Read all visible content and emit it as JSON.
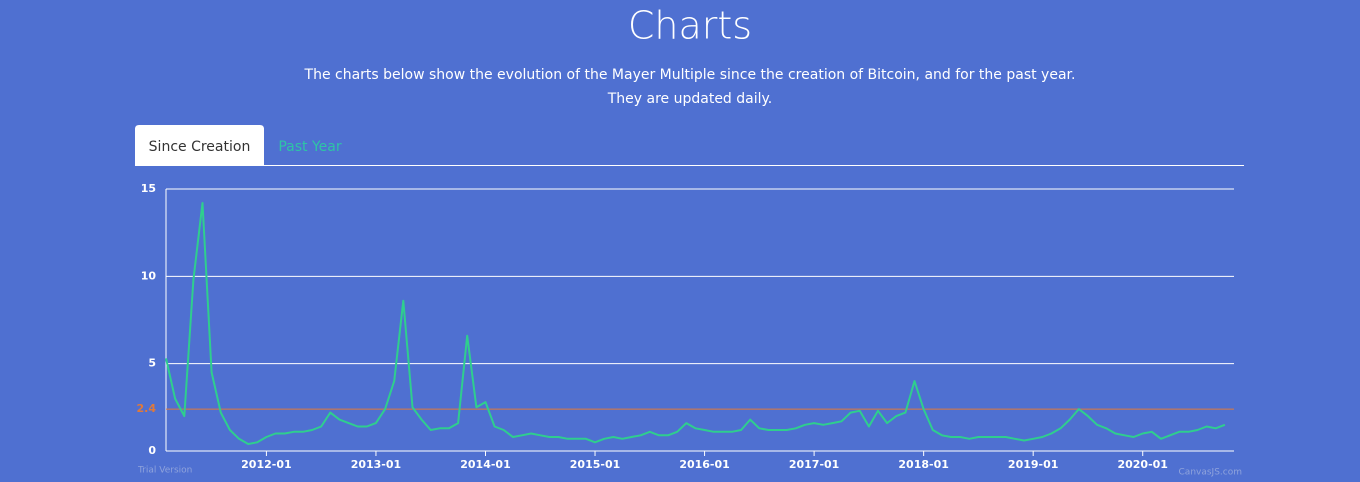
{
  "header": {
    "title": "Charts",
    "subtitle_lines": [
      "The charts below show the evolution of the Mayer Multiple since the creation of Bitcoin, and for the past year.",
      "They are updated daily."
    ]
  },
  "tabs": [
    "Since Creation",
    "Past Year"
  ],
  "chart_data": {
    "type": "line",
    "color": "#2fce8e",
    "x": [
      "2011-02",
      "2011-03",
      "2011-04",
      "2011-05",
      "2011-06",
      "2011-07",
      "2011-08",
      "2011-09",
      "2011-10",
      "2011-11",
      "2011-12",
      "2012-01",
      "2012-02",
      "2012-03",
      "2012-04",
      "2012-05",
      "2012-06",
      "2012-07",
      "2012-08",
      "2012-09",
      "2012-10",
      "2012-11",
      "2012-12",
      "2013-01",
      "2013-02",
      "2013-03",
      "2013-04",
      "2013-05",
      "2013-06",
      "2013-07",
      "2013-08",
      "2013-09",
      "2013-10",
      "2013-11",
      "2013-12",
      "2014-01",
      "2014-02",
      "2014-03",
      "2014-04",
      "2014-05",
      "2014-06",
      "2014-07",
      "2014-08",
      "2014-09",
      "2014-10",
      "2014-11",
      "2014-12",
      "2015-01",
      "2015-02",
      "2015-03",
      "2015-04",
      "2015-05",
      "2015-06",
      "2015-07",
      "2015-08",
      "2015-09",
      "2015-10",
      "2015-11",
      "2015-12",
      "2016-01",
      "2016-02",
      "2016-03",
      "2016-04",
      "2016-05",
      "2016-06",
      "2016-07",
      "2016-08",
      "2016-09",
      "2016-10",
      "2016-11",
      "2016-12",
      "2017-01",
      "2017-02",
      "2017-03",
      "2017-04",
      "2017-05",
      "2017-06",
      "2017-07",
      "2017-08",
      "2017-09",
      "2017-10",
      "2017-11",
      "2017-12",
      "2018-01",
      "2018-02",
      "2018-03",
      "2018-04",
      "2018-05",
      "2018-06",
      "2018-07",
      "2018-08",
      "2018-09",
      "2018-10",
      "2018-11",
      "2018-12",
      "2019-01",
      "2019-02",
      "2019-03",
      "2019-04",
      "2019-05",
      "2019-06",
      "2019-07",
      "2019-08",
      "2019-09",
      "2019-10",
      "2019-11",
      "2019-12",
      "2020-01",
      "2020-02",
      "2020-03",
      "2020-04",
      "2020-05",
      "2020-06",
      "2020-07",
      "2020-08",
      "2020-09",
      "2020-10"
    ],
    "values": [
      5.3,
      3.0,
      2.0,
      9.8,
      14.2,
      4.5,
      2.2,
      1.2,
      0.7,
      0.4,
      0.5,
      0.8,
      1.0,
      1.0,
      1.1,
      1.1,
      1.2,
      1.4,
      2.2,
      1.8,
      1.6,
      1.4,
      1.4,
      1.6,
      2.4,
      4.0,
      8.6,
      2.5,
      1.8,
      1.2,
      1.3,
      1.3,
      1.6,
      6.6,
      2.5,
      2.8,
      1.4,
      1.2,
      0.8,
      0.9,
      1.0,
      0.9,
      0.8,
      0.8,
      0.7,
      0.7,
      0.7,
      0.5,
      0.7,
      0.8,
      0.7,
      0.8,
      0.9,
      1.1,
      0.9,
      0.9,
      1.1,
      1.6,
      1.3,
      1.2,
      1.1,
      1.1,
      1.1,
      1.2,
      1.8,
      1.3,
      1.2,
      1.2,
      1.2,
      1.3,
      1.5,
      1.6,
      1.5,
      1.6,
      1.7,
      2.2,
      2.3,
      1.4,
      2.3,
      1.6,
      2.0,
      2.2,
      4.0,
      2.4,
      1.2,
      0.9,
      0.8,
      0.8,
      0.7,
      0.8,
      0.8,
      0.8,
      0.8,
      0.7,
      0.6,
      0.7,
      0.8,
      1.0,
      1.3,
      1.8,
      2.4,
      2.0,
      1.5,
      1.3,
      1.0,
      0.9,
      0.8,
      1.0,
      1.1,
      0.7,
      0.9,
      1.1,
      1.1,
      1.2,
      1.4,
      1.3,
      1.5
    ],
    "xlim": [
      "2011-02",
      "2020-11"
    ],
    "xticks": [
      "2012-01",
      "2013-01",
      "2014-01",
      "2015-01",
      "2016-01",
      "2017-01",
      "2018-01",
      "2019-01",
      "2020-01"
    ],
    "ylim": [
      0,
      15
    ],
    "yticks": [
      0,
      5,
      10,
      15
    ],
    "grid": true,
    "reference_line": {
      "value": 2.4,
      "color": "#e0793a"
    },
    "watermarks": [
      "Trial Version",
      "CanvasJS.com"
    ]
  }
}
